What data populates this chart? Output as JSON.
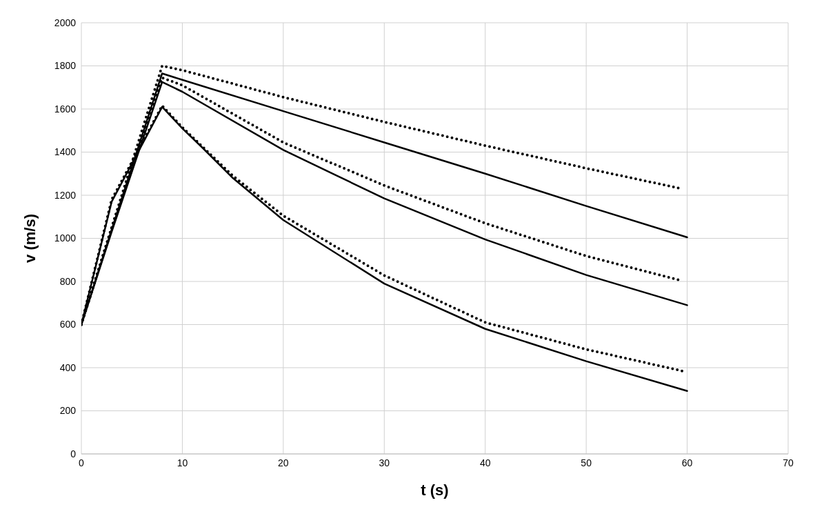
{
  "chart_data": {
    "type": "line",
    "xlabel": "t (s)",
    "ylabel": "v (m/s)",
    "xlim": [
      0,
      70
    ],
    "xticks": [
      0,
      10,
      20,
      30,
      40,
      50,
      60,
      70
    ],
    "ylim": [
      0,
      2000
    ],
    "yticks": [
      0,
      200,
      400,
      600,
      800,
      1000,
      1200,
      1400,
      1600,
      1800,
      2000
    ],
    "grid": true,
    "marker": "none",
    "series": [
      {
        "color": "#000000",
        "line_style": "solid",
        "x": [
          0,
          3,
          8,
          10,
          20,
          30,
          40,
          50,
          60
        ],
        "values": [
          600,
          1040,
          1765,
          1735,
          1590,
          1445,
          1300,
          1150,
          1005
        ]
      },
      {
        "color": "#000000",
        "line_style": "solid",
        "x": [
          0,
          3,
          8,
          10,
          20,
          30,
          40,
          50,
          60
        ],
        "values": [
          600,
          1030,
          1725,
          1680,
          1410,
          1185,
          995,
          830,
          690
        ]
      },
      {
        "color": "#000000",
        "line_style": "solid",
        "x": [
          0,
          3,
          8,
          10,
          12,
          15,
          20,
          30,
          40,
          50,
          60
        ],
        "values": [
          600,
          1170,
          1610,
          1510,
          1420,
          1280,
          1085,
          790,
          580,
          430,
          292
        ]
      },
      {
        "color": "#000000",
        "line_style": "dotted",
        "x": [
          0,
          3,
          8,
          10,
          20,
          30,
          40,
          50,
          59.5
        ],
        "values": [
          600,
          1050,
          1800,
          1780,
          1655,
          1540,
          1430,
          1325,
          1230
        ]
      },
      {
        "color": "#000000",
        "line_style": "dotted",
        "x": [
          0,
          3,
          8,
          10,
          20,
          30,
          40,
          50,
          59.5
        ],
        "values": [
          600,
          1050,
          1745,
          1710,
          1445,
          1245,
          1070,
          918,
          803
        ]
      },
      {
        "color": "#000000",
        "line_style": "dotted",
        "x": [
          0,
          3,
          8,
          10,
          12,
          15,
          20,
          30,
          40,
          50,
          59.5
        ],
        "values": [
          600,
          1180,
          1615,
          1515,
          1425,
          1290,
          1105,
          828,
          610,
          485,
          385
        ]
      }
    ]
  }
}
